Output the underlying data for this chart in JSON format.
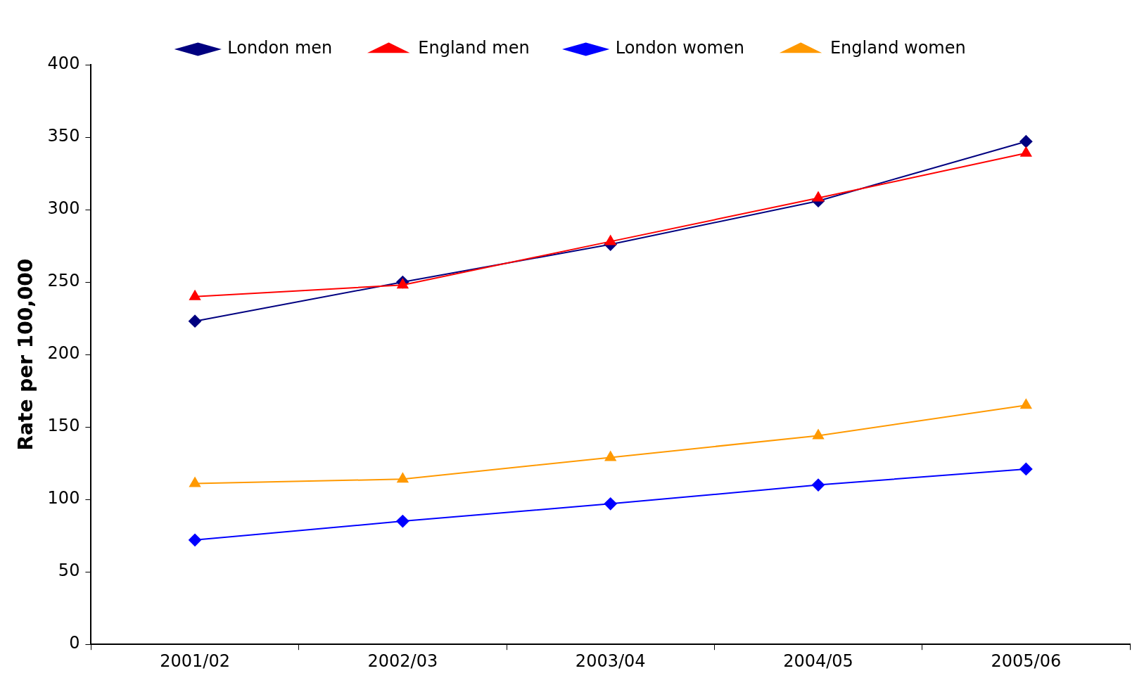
{
  "chart_data": {
    "type": "line",
    "ylabel": "Rate per 100,000",
    "categories": [
      "2001/02",
      "2002/03",
      "2003/04",
      "2004/05",
      "2005/06"
    ],
    "series": [
      {
        "name": "London men",
        "color": "#000080",
        "marker": "diamond",
        "values": [
          223,
          250,
          276,
          306,
          347
        ]
      },
      {
        "name": "England men",
        "color": "#ff0000",
        "marker": "triangle",
        "values": [
          240,
          248,
          278,
          308,
          339
        ]
      },
      {
        "name": "London women",
        "color": "#0000ff",
        "marker": "diamond",
        "values": [
          72,
          85,
          97,
          110,
          121
        ]
      },
      {
        "name": "England women",
        "color": "#ff9900",
        "marker": "triangle",
        "values": [
          111,
          114,
          129,
          144,
          165
        ]
      }
    ],
    "ylim": [
      0,
      400
    ],
    "yticks": [
      0,
      50,
      100,
      150,
      200,
      250,
      300,
      350,
      400
    ],
    "grid": false,
    "legend": "top",
    "line_style": "solid"
  }
}
